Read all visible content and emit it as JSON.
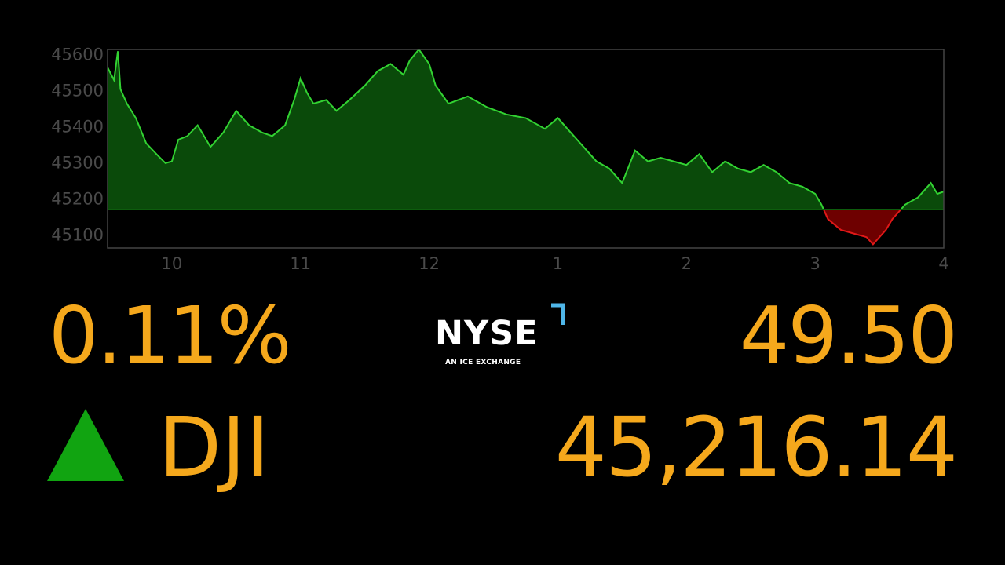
{
  "quote": {
    "percent_change": "0.11%",
    "ticker": "DJI",
    "point_change": "49.50",
    "price": "45,216.14",
    "direction": "up"
  },
  "logo": {
    "wordmark": "NYSE",
    "tagline": "AN ICE EXCHANGE",
    "accent_color": "#4fb6e8"
  },
  "colors": {
    "value_text": "#f5a81c",
    "up": "#11a411",
    "above_fill": "#0a4a0a",
    "above_line": "#32d232",
    "below_fill": "#6e0000",
    "below_line": "#e01818",
    "axis_text": "#4a4a4a",
    "frame": "#444444"
  },
  "chart_data": {
    "type": "area",
    "title": "",
    "xlabel": "",
    "ylabel": "",
    "baseline": 45166.64,
    "xlim": [
      9.5,
      16
    ],
    "ylim": [
      45060,
      45610
    ],
    "x_ticks": [
      10,
      11,
      12,
      13,
      14,
      15,
      16
    ],
    "x_tick_labels": [
      "10",
      "11",
      "12",
      "1",
      "2",
      "3",
      "4"
    ],
    "y_ticks": [
      45100,
      45200,
      45300,
      45400,
      45500,
      45600
    ],
    "y_tick_labels": [
      "45100",
      "45200",
      "45300",
      "45400",
      "45500",
      "45600"
    ],
    "grid": false,
    "series": [
      {
        "x": [
          9.5,
          9.55,
          9.58,
          9.6,
          9.65,
          9.72,
          9.8,
          9.88,
          9.95,
          10.0,
          10.05,
          10.12,
          10.2,
          10.3,
          10.4,
          10.5,
          10.6,
          10.7,
          10.78,
          10.88,
          10.95,
          11.0,
          11.05,
          11.1,
          11.2,
          11.28,
          11.38,
          11.5,
          11.6,
          11.7,
          11.8,
          11.85,
          11.92,
          12.0,
          12.05,
          12.15,
          12.3,
          12.45,
          12.6,
          12.75,
          12.9,
          13.0,
          13.1,
          13.2,
          13.3,
          13.4,
          13.5,
          13.6,
          13.7,
          13.8,
          13.9,
          14.0,
          14.1,
          14.2,
          14.3,
          14.4,
          14.5,
          14.6,
          14.7,
          14.8,
          14.9,
          15.0,
          15.05,
          15.1,
          15.2,
          15.3,
          15.4,
          15.45,
          15.5,
          15.55,
          15.6,
          15.65,
          15.7,
          15.8,
          15.9,
          15.95,
          16.0
        ],
        "y": [
          45560,
          45525,
          45605,
          45500,
          45460,
          45420,
          45350,
          45320,
          45295,
          45300,
          45360,
          45370,
          45400,
          45340,
          45380,
          45440,
          45400,
          45380,
          45370,
          45400,
          45470,
          45530,
          45490,
          45460,
          45470,
          45440,
          45470,
          45510,
          45550,
          45570,
          45540,
          45580,
          45610,
          45570,
          45510,
          45460,
          45480,
          45450,
          45430,
          45420,
          45390,
          45420,
          45380,
          45340,
          45300,
          45280,
          45240,
          45330,
          45300,
          45310,
          45300,
          45290,
          45320,
          45270,
          45300,
          45280,
          45270,
          45290,
          45270,
          45240,
          45230,
          45210,
          45180,
          45140,
          45110,
          45100,
          45090,
          45070,
          45090,
          45110,
          45140,
          45160,
          45180,
          45200,
          45240,
          45210,
          45216.14
        ]
      }
    ]
  }
}
